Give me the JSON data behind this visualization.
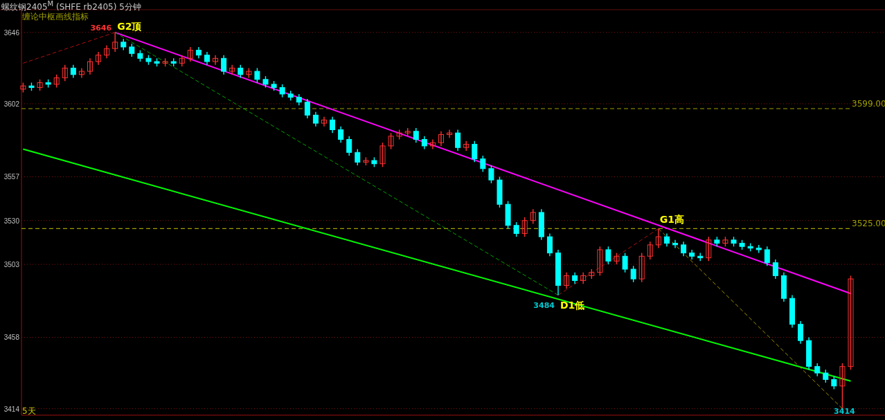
{
  "chart_data": {
    "type": "candlestick",
    "title": "螺纹钢2405$^{M}$ (SHFE rb2405)  5分钟",
    "subtitle": "缠论中枢画线指标",
    "categories": [
      null,
      null,
      null,
      null,
      null,
      null,
      null,
      null,
      null,
      null,
      null,
      null,
      null,
      null,
      null,
      null,
      null,
      null,
      null,
      null,
      null,
      null,
      null,
      null,
      null,
      null,
      null,
      null,
      null,
      null,
      null,
      null,
      null,
      null,
      null,
      null,
      null,
      null,
      null,
      null,
      null,
      null,
      null,
      null,
      null,
      null,
      null,
      null,
      null,
      null,
      null,
      null,
      null,
      null,
      null,
      null,
      null,
      null,
      null,
      null,
      null,
      null,
      null,
      null,
      null,
      null,
      null,
      null,
      null,
      null,
      null,
      null,
      null,
      null,
      null,
      null,
      null,
      null,
      null,
      null,
      null,
      null,
      null,
      null,
      null,
      null,
      null,
      null,
      null,
      null,
      null,
      null,
      null,
      null,
      null,
      null,
      null,
      null,
      null,
      null
    ],
    "ohlc": [
      [
        3611,
        3615,
        3609,
        3613
      ],
      [
        3613,
        3615,
        3610,
        3612
      ],
      [
        3612,
        3617,
        3610,
        3615
      ],
      [
        3615,
        3617,
        3612,
        3614
      ],
      [
        3614,
        3620,
        3612,
        3618
      ],
      [
        3618,
        3626,
        3616,
        3624
      ],
      [
        3624,
        3626,
        3618,
        3620
      ],
      [
        3620,
        3624,
        3618,
        3622
      ],
      [
        3622,
        3630,
        3620,
        3628
      ],
      [
        3628,
        3634,
        3626,
        3632
      ],
      [
        3632,
        3638,
        3630,
        3636
      ],
      [
        3636,
        3646,
        3634,
        3640
      ],
      [
        3640,
        3642,
        3635,
        3637
      ],
      [
        3637,
        3639,
        3631,
        3633
      ],
      [
        3633,
        3635,
        3628,
        3630
      ],
      [
        3630,
        3632,
        3626,
        3628
      ],
      [
        3628,
        3630,
        3625,
        3627
      ],
      [
        3627,
        3630,
        3625,
        3628
      ],
      [
        3628,
        3630,
        3625,
        3627
      ],
      [
        3627,
        3632,
        3625,
        3630
      ],
      [
        3630,
        3637,
        3628,
        3635
      ],
      [
        3635,
        3637,
        3630,
        3632
      ],
      [
        3632,
        3634,
        3626,
        3628
      ],
      [
        3628,
        3632,
        3626,
        3630
      ],
      [
        3630,
        3632,
        3620,
        3622
      ],
      [
        3622,
        3626,
        3620,
        3624
      ],
      [
        3624,
        3626,
        3618,
        3620
      ],
      [
        3620,
        3624,
        3618,
        3622
      ],
      [
        3622,
        3624,
        3615,
        3617
      ],
      [
        3617,
        3619,
        3612,
        3614
      ],
      [
        3614,
        3616,
        3610,
        3612
      ],
      [
        3612,
        3614,
        3606,
        3608
      ],
      [
        3608,
        3610,
        3604,
        3606
      ],
      [
        3606,
        3608,
        3601,
        3603
      ],
      [
        3603,
        3605,
        3593,
        3595
      ],
      [
        3595,
        3597,
        3588,
        3590
      ],
      [
        3590,
        3594,
        3588,
        3592
      ],
      [
        3592,
        3594,
        3584,
        3586
      ],
      [
        3586,
        3588,
        3578,
        3580
      ],
      [
        3580,
        3582,
        3570,
        3572
      ],
      [
        3572,
        3574,
        3564,
        3566
      ],
      [
        3566,
        3569,
        3564,
        3567
      ],
      [
        3567,
        3569,
        3563,
        3565
      ],
      [
        3565,
        3578,
        3563,
        3576
      ],
      [
        3576,
        3584,
        3574,
        3582
      ],
      [
        3582,
        3586,
        3580,
        3584
      ],
      [
        3584,
        3587,
        3582,
        3585
      ],
      [
        3585,
        3587,
        3578,
        3580
      ],
      [
        3580,
        3582,
        3574,
        3576
      ],
      [
        3576,
        3580,
        3574,
        3578
      ],
      [
        3578,
        3585,
        3576,
        3583
      ],
      [
        3583,
        3586,
        3581,
        3584
      ],
      [
        3584,
        3586,
        3573,
        3575
      ],
      [
        3575,
        3579,
        3573,
        3577
      ],
      [
        3577,
        3579,
        3566,
        3568
      ],
      [
        3568,
        3570,
        3560,
        3562
      ],
      [
        3562,
        3564,
        3553,
        3555
      ],
      [
        3555,
        3557,
        3538,
        3540
      ],
      [
        3540,
        3542,
        3525,
        3527
      ],
      [
        3527,
        3529,
        3520,
        3522
      ],
      [
        3522,
        3532,
        3520,
        3530
      ],
      [
        3530,
        3537,
        3528,
        3535
      ],
      [
        3535,
        3537,
        3518,
        3520
      ],
      [
        3520,
        3522,
        3508,
        3510
      ],
      [
        3510,
        3512,
        3484,
        3490
      ],
      [
        3490,
        3498,
        3488,
        3496
      ],
      [
        3496,
        3498,
        3491,
        3493
      ],
      [
        3493,
        3498,
        3491,
        3496
      ],
      [
        3496,
        3500,
        3494,
        3498
      ],
      [
        3498,
        3514,
        3496,
        3512
      ],
      [
        3512,
        3514,
        3503,
        3505
      ],
      [
        3505,
        3510,
        3503,
        3508
      ],
      [
        3508,
        3510,
        3498,
        3500
      ],
      [
        3500,
        3502,
        3492,
        3494
      ],
      [
        3494,
        3510,
        3492,
        3508
      ],
      [
        3508,
        3517,
        3506,
        3515
      ],
      [
        3515,
        3525,
        3513,
        3520
      ],
      [
        3520,
        3522,
        3514,
        3516
      ],
      [
        3516,
        3518,
        3513,
        3515
      ],
      [
        3515,
        3517,
        3508,
        3510
      ],
      [
        3510,
        3512,
        3506,
        3508
      ],
      [
        3508,
        3510,
        3505,
        3507
      ],
      [
        3507,
        3520,
        3505,
        3518
      ],
      [
        3518,
        3520,
        3514,
        3516
      ],
      [
        3516,
        3520,
        3514,
        3518
      ],
      [
        3518,
        3520,
        3514,
        3516
      ],
      [
        3516,
        3518,
        3512,
        3514
      ],
      [
        3514,
        3516,
        3511,
        3513
      ],
      [
        3513,
        3515,
        3510,
        3512
      ],
      [
        3512,
        3514,
        3502,
        3504
      ],
      [
        3504,
        3506,
        3494,
        3496
      ],
      [
        3496,
        3498,
        3480,
        3482
      ],
      [
        3482,
        3484,
        3464,
        3466
      ],
      [
        3466,
        3468,
        3454,
        3456
      ],
      [
        3456,
        3458,
        3438,
        3440
      ],
      [
        3440,
        3442,
        3434,
        3436
      ],
      [
        3436,
        3438,
        3430,
        3432
      ],
      [
        3432,
        3434,
        3426,
        3428
      ],
      [
        3428,
        3442,
        3414,
        3440
      ],
      [
        3440,
        3496,
        3438,
        3494
      ]
    ],
    "colors": [
      "#ff3232",
      "#00ffff",
      "#ff3232",
      "#00ffff",
      "#ff3232",
      "#ff3232",
      "#00ffff",
      "#ff3232",
      "#ff3232",
      "#ff3232",
      "#ff3232",
      "#ff3232",
      "#00ffff",
      "#00ffff",
      "#00ffff",
      "#00ffff",
      "#00ffff",
      "#ff3232",
      "#00ffff",
      "#ff3232",
      "#ff3232",
      "#00ffff",
      "#00ffff",
      "#ff3232",
      "#00ffff",
      "#ff3232",
      "#00ffff",
      "#ff3232",
      "#00ffff",
      "#00ffff",
      "#00ffff",
      "#00ffff",
      "#00ffff",
      "#00ffff",
      "#00ffff",
      "#00ffff",
      "#ff3232",
      "#00ffff",
      "#00ffff",
      "#00ffff",
      "#00ffff",
      "#ff3232",
      "#00ffff",
      "#ff3232",
      "#ff3232",
      "#ff3232",
      "#ff3232",
      "#00ffff",
      "#00ffff",
      "#ff3232",
      "#ff3232",
      "#ff3232",
      "#00ffff",
      "#ff3232",
      "#00ffff",
      "#00ffff",
      "#00ffff",
      "#00ffff",
      "#00ffff",
      "#00ffff",
      "#ff3232",
      "#ff3232",
      "#00ffff",
      "#00ffff",
      "#00ffff",
      "#ff3232",
      "#00ffff",
      "#ff3232",
      "#ff3232",
      "#ff3232",
      "#00ffff",
      "#ff3232",
      "#00ffff",
      "#00ffff",
      "#ff3232",
      "#ff3232",
      "#ff3232",
      "#00ffff",
      "#00ffff",
      "#00ffff",
      "#00ffff",
      "#00ffff",
      "#ff3232",
      "#00ffff",
      "#ff3232",
      "#00ffff",
      "#00ffff",
      "#00ffff",
      "#00ffff",
      "#00ffff",
      "#00ffff",
      "#00ffff",
      "#00ffff",
      "#00ffff",
      "#00ffff",
      "#00ffff",
      "#00ffff",
      "#00ffff",
      "#ff3232",
      "#ff3232"
    ],
    "series": [
      {
        "type": "line",
        "color": "#ff00ff",
        "line_style": "solid",
        "values": [
          null,
          null,
          null,
          null,
          null,
          null,
          null,
          null,
          null,
          null,
          null,
          3646,
          null,
          null,
          null,
          null,
          null,
          null,
          null,
          null,
          null,
          null,
          null,
          null,
          null,
          null,
          null,
          null,
          null,
          null,
          null,
          null,
          null,
          null,
          null,
          null,
          null,
          null,
          null,
          null,
          null,
          null,
          null,
          null,
          null,
          null,
          null,
          null,
          null,
          null,
          null,
          null,
          null,
          null,
          null,
          null,
          null,
          null,
          null,
          null,
          null,
          null,
          null,
          null,
          null,
          null,
          null,
          null,
          null,
          null,
          null,
          null,
          null,
          null,
          null,
          null,
          null,
          null,
          null,
          null,
          null,
          null,
          null,
          null,
          null,
          null,
          null,
          null,
          null,
          null,
          null,
          null,
          null,
          null,
          null,
          null,
          null,
          null,
          null,
          3485
        ]
      },
      {
        "type": "line",
        "color": "#00ff00",
        "line_style": "solid",
        "values": [
          3574,
          null,
          null,
          null,
          null,
          null,
          null,
          null,
          null,
          null,
          null,
          null,
          null,
          null,
          null,
          null,
          null,
          null,
          null,
          null,
          null,
          null,
          null,
          null,
          null,
          null,
          null,
          null,
          null,
          null,
          null,
          null,
          null,
          null,
          null,
          null,
          null,
          null,
          null,
          null,
          null,
          null,
          null,
          null,
          null,
          null,
          null,
          null,
          null,
          null,
          null,
          null,
          null,
          null,
          null,
          null,
          null,
          null,
          null,
          null,
          null,
          null,
          null,
          null,
          null,
          null,
          null,
          null,
          null,
          null,
          null,
          null,
          null,
          null,
          null,
          null,
          null,
          null,
          null,
          null,
          null,
          null,
          null,
          null,
          null,
          null,
          null,
          null,
          null,
          null,
          null,
          null,
          null,
          null,
          null,
          null,
          null,
          null,
          null,
          3431
        ]
      },
      {
        "type": "line",
        "color": "#b01010",
        "line_style": "dashed",
        "values": [
          3627,
          null,
          null,
          null,
          null,
          null,
          null,
          null,
          null,
          null,
          null,
          3646,
          null,
          null,
          null,
          null,
          null,
          null,
          null,
          null,
          null,
          null,
          null,
          null,
          null,
          null,
          null,
          null,
          null,
          null,
          null,
          null,
          null,
          null,
          null,
          null,
          null,
          null,
          null,
          null,
          null,
          null,
          null,
          null,
          null,
          null,
          null,
          null,
          null,
          null,
          null,
          null,
          null,
          null,
          null,
          null,
          null,
          null,
          null,
          null,
          null,
          null,
          null,
          null,
          null,
          null,
          null,
          null,
          null,
          null,
          null,
          null,
          null,
          null,
          null,
          null,
          null,
          null,
          null,
          null,
          null,
          null,
          null,
          null,
          null,
          null,
          null,
          null,
          null,
          null,
          null,
          null,
          null,
          null,
          null,
          null,
          null,
          null,
          null,
          null
        ]
      },
      {
        "type": "line",
        "color": "#00a000",
        "line_style": "dashed",
        "values": [
          null,
          null,
          null,
          null,
          null,
          null,
          null,
          null,
          null,
          null,
          null,
          3646,
          null,
          null,
          null,
          null,
          null,
          null,
          null,
          null,
          null,
          null,
          null,
          null,
          null,
          null,
          null,
          null,
          null,
          null,
          null,
          null,
          null,
          null,
          null,
          null,
          null,
          null,
          null,
          null,
          null,
          null,
          null,
          null,
          null,
          null,
          null,
          null,
          null,
          null,
          null,
          null,
          null,
          null,
          null,
          null,
          null,
          null,
          null,
          null,
          null,
          null,
          null,
          null,
          3484,
          null,
          null,
          null,
          null,
          null,
          null,
          null,
          null,
          null,
          null,
          null,
          null,
          null,
          null,
          null,
          null,
          null,
          null,
          null,
          null,
          null,
          null,
          null,
          null,
          null,
          null,
          null,
          null,
          null,
          null,
          null,
          null,
          null,
          null,
          null
        ]
      },
      {
        "type": "line",
        "color": "#b01010",
        "line_style": "dashed",
        "values": [
          null,
          null,
          null,
          null,
          null,
          null,
          null,
          null,
          null,
          null,
          null,
          null,
          null,
          null,
          null,
          null,
          null,
          null,
          null,
          null,
          null,
          null,
          null,
          null,
          null,
          null,
          null,
          null,
          null,
          null,
          null,
          null,
          null,
          null,
          null,
          null,
          null,
          null,
          null,
          null,
          null,
          null,
          null,
          null,
          null,
          null,
          null,
          null,
          null,
          null,
          null,
          null,
          null,
          null,
          null,
          null,
          null,
          null,
          null,
          null,
          null,
          null,
          null,
          null,
          3484,
          null,
          null,
          null,
          null,
          null,
          null,
          null,
          null,
          null,
          null,
          null,
          3525,
          null,
          null,
          null,
          null,
          null,
          null,
          null,
          null,
          null,
          null,
          null,
          null,
          null,
          null,
          null,
          null,
          null,
          null,
          null,
          null,
          null,
          null,
          null
        ]
      },
      {
        "type": "line",
        "color": "#a09000",
        "line_style": "dashed",
        "values": [
          null,
          null,
          null,
          null,
          null,
          null,
          null,
          null,
          null,
          null,
          null,
          null,
          null,
          null,
          null,
          null,
          null,
          null,
          null,
          null,
          null,
          null,
          null,
          null,
          null,
          null,
          null,
          null,
          null,
          null,
          null,
          null,
          null,
          null,
          null,
          null,
          null,
          null,
          null,
          null,
          null,
          null,
          null,
          null,
          null,
          null,
          null,
          null,
          null,
          null,
          null,
          null,
          null,
          null,
          null,
          null,
          null,
          null,
          null,
          null,
          null,
          null,
          null,
          null,
          null,
          null,
          null,
          null,
          null,
          null,
          null,
          null,
          null,
          null,
          null,
          null,
          3525,
          null,
          null,
          null,
          null,
          null,
          null,
          null,
          null,
          null,
          null,
          null,
          null,
          null,
          null,
          null,
          null,
          null,
          null,
          null,
          null,
          null,
          3414,
          null
        ]
      }
    ],
    "ylim": [
      3410,
      3660
    ],
    "yticks": [
      3414,
      3458,
      3503,
      3530,
      3557,
      3602,
      3646
    ],
    "grid": "y",
    "tick_labels": "y",
    "ref_lines": [
      {
        "axis": "y",
        "value": 3599,
        "label": "3599.00",
        "color": "#a0a000",
        "line_style": "dashed"
      },
      {
        "axis": "y",
        "value": 3525,
        "label": "3525.00",
        "color": "#a0a000",
        "line_style": "dashed"
      }
    ],
    "annotations": [
      "3646",
      "G2顶",
      "3484",
      "D1低",
      "G1高",
      "3414",
      "5天"
    ]
  }
}
